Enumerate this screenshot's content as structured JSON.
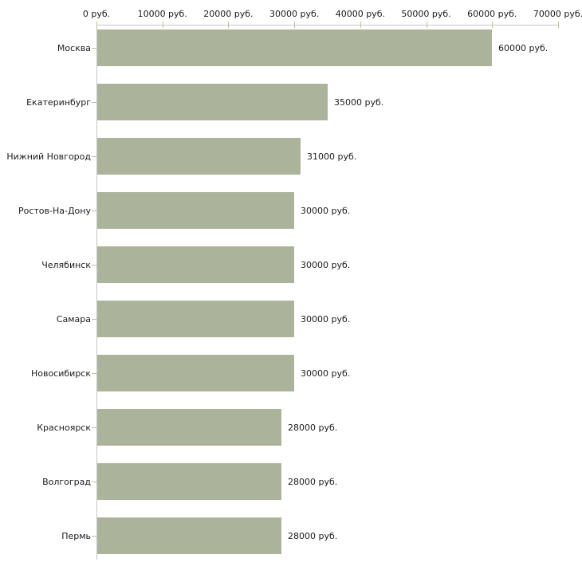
{
  "chart_data": {
    "type": "bar",
    "orientation": "horizontal",
    "title": "",
    "categories": [
      "Москва",
      "Екатеринбург",
      "Нижний Новгород",
      "Ростов-На-Дону",
      "Челябинск",
      "Самара",
      "Новосибирск",
      "Красноярск",
      "Волгоград",
      "Пермь"
    ],
    "values": [
      60000,
      35000,
      31000,
      30000,
      30000,
      30000,
      30000,
      28000,
      28000,
      28000
    ],
    "value_labels": [
      "60000 руб.",
      "35000 руб.",
      "31000 руб.",
      "30000 руб.",
      "30000 руб.",
      "30000 руб.",
      "30000 руб.",
      "28000 руб.",
      "28000 руб.",
      "28000 руб."
    ],
    "unit": "руб.",
    "x_axis": {
      "position": "top",
      "min": 0,
      "max": 70000,
      "tick_values": [
        0,
        10000,
        20000,
        30000,
        40000,
        50000,
        60000,
        70000
      ],
      "tick_labels": [
        "0 руб.",
        "10000 руб.",
        "20000 руб.",
        "30000 руб.",
        "40000 руб.",
        "50000 руб.",
        "60000 руб.",
        "70000 руб."
      ]
    },
    "grid": false,
    "legend": false,
    "colors": {
      "bar": "#abb49a",
      "axis_line": "#c6c6c6",
      "tick_mark": "#c2c08f",
      "text": "#1c1c1c",
      "background": "#ffffff"
    }
  }
}
